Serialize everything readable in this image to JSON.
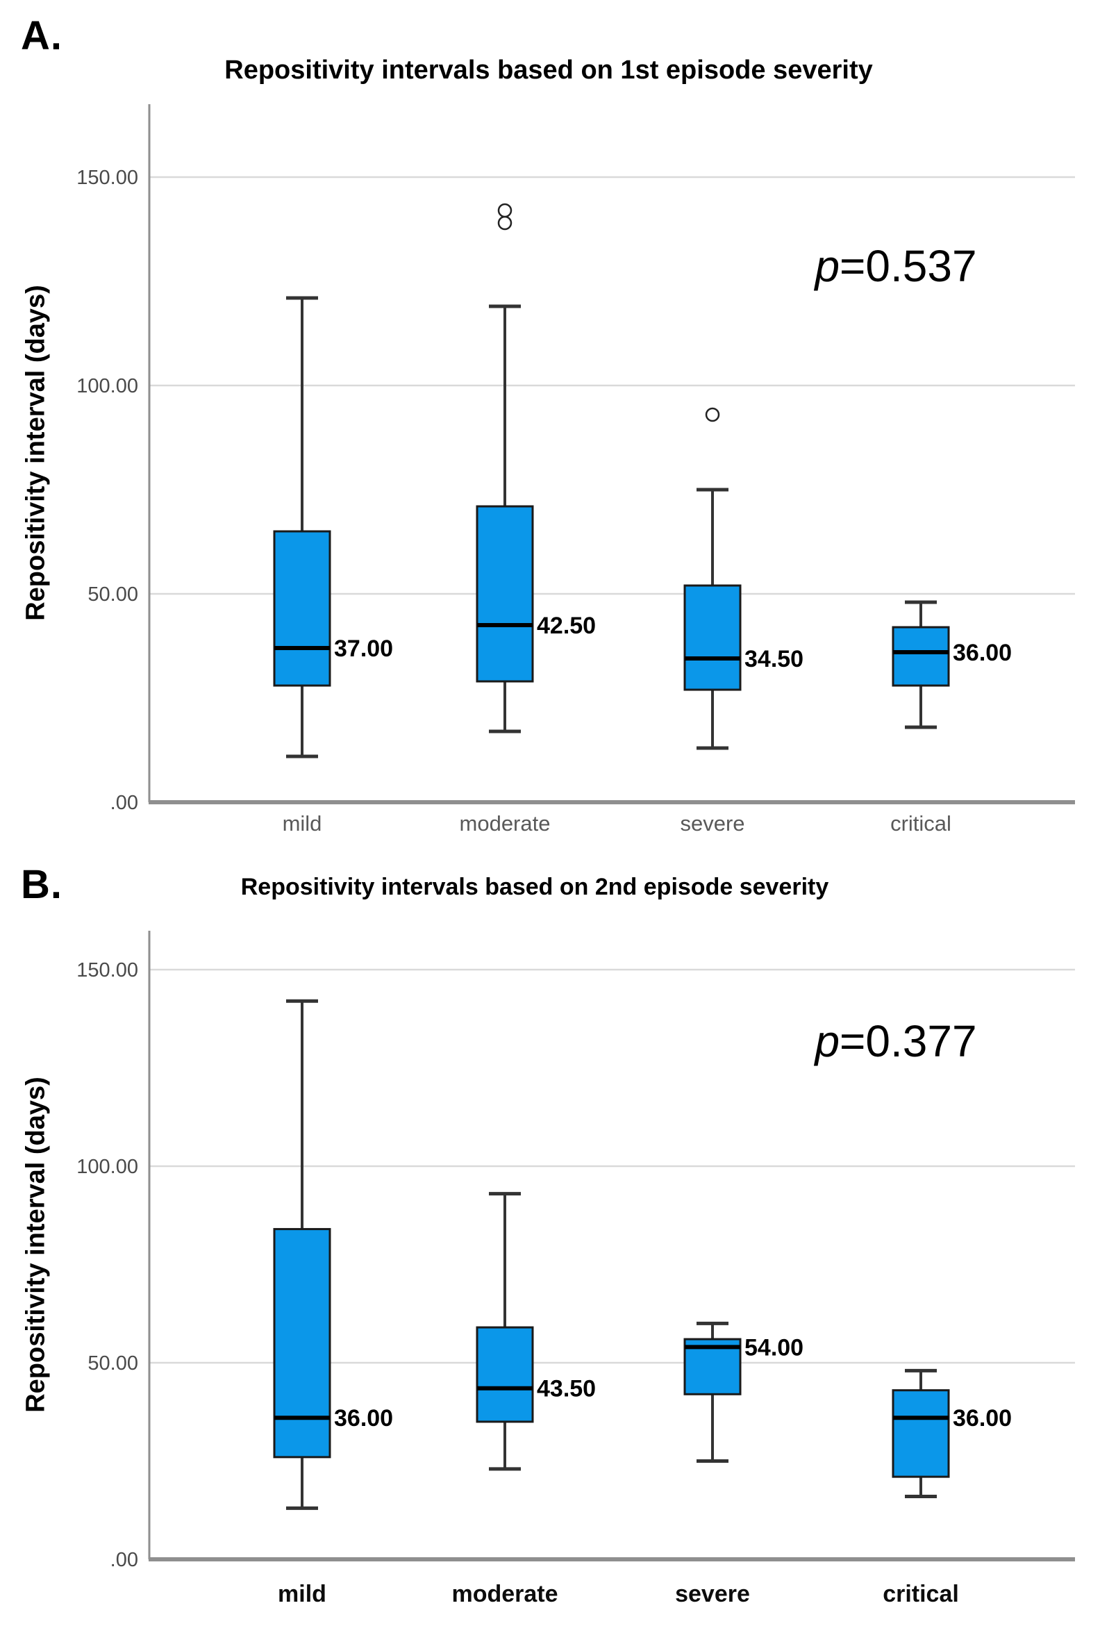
{
  "figure_colors": {
    "box_fill": "#0b97e9",
    "box_border": "#1a1a1a",
    "median_line": "#000000",
    "whisker": "#333333",
    "gridline": "#d9d9d9",
    "axis": "#8f8f8f",
    "outlier_stroke": "#222222"
  },
  "chart_data": [
    {
      "type": "boxplot",
      "panel_letter": "A.",
      "title": "Repositivity intervals based on 1st episode severity",
      "p_symbol": "p",
      "p_value_text": "=0.537",
      "ylabel": "Repositivity interval (days)",
      "ylim": [
        0,
        167
      ],
      "grid": "horizontal",
      "yticks": [
        {
          "value": 150,
          "label": "150.00"
        },
        {
          "value": 100,
          "label": "100.00"
        },
        {
          "value": 50,
          "label": "50.00"
        },
        {
          "value": 0,
          "label": ".00"
        }
      ],
      "categories": [
        "mild",
        "moderate",
        "severe",
        "critical"
      ],
      "boxes": [
        {
          "category": "mild",
          "whisker_low": 11,
          "q1": 28,
          "median": 37.0,
          "q3": 65,
          "whisker_high": 121,
          "median_label": "37.00",
          "outliers": []
        },
        {
          "category": "moderate",
          "whisker_low": 17,
          "q1": 29,
          "median": 42.5,
          "q3": 71,
          "whisker_high": 119,
          "median_label": "42.50",
          "outliers": [
            139,
            142
          ]
        },
        {
          "category": "severe",
          "whisker_low": 13,
          "q1": 27,
          "median": 34.5,
          "q3": 52,
          "whisker_high": 75,
          "median_label": "34.50",
          "outliers": [
            93
          ]
        },
        {
          "category": "critical",
          "whisker_low": 18,
          "q1": 28,
          "median": 36.0,
          "q3": 42,
          "whisker_high": 48,
          "median_label": "36.00",
          "outliers": []
        }
      ],
      "tick_text_color": "#4a4a4a",
      "category_text_color": "#595959"
    },
    {
      "type": "boxplot",
      "panel_letter": "B.",
      "title": "Repositivity intervals based on 2nd episode severity",
      "p_symbol": "p",
      "p_value_text": "=0.377",
      "ylabel": "Repositivity interval (days)",
      "ylim": [
        0,
        160
      ],
      "grid": "horizontal",
      "yticks": [
        {
          "value": 150,
          "label": "150.00"
        },
        {
          "value": 100,
          "label": "100.00"
        },
        {
          "value": 50,
          "label": "50.00"
        },
        {
          "value": 0,
          "label": ".00"
        }
      ],
      "categories": [
        "mild",
        "moderate",
        "severe",
        "critical"
      ],
      "boxes": [
        {
          "category": "mild",
          "whisker_low": 13,
          "q1": 26,
          "median": 36.0,
          "q3": 84,
          "whisker_high": 142,
          "median_label": "36.00",
          "outliers": []
        },
        {
          "category": "moderate",
          "whisker_low": 23,
          "q1": 35,
          "median": 43.5,
          "q3": 59,
          "whisker_high": 93,
          "median_label": "43.50",
          "outliers": []
        },
        {
          "category": "severe",
          "whisker_low": 25,
          "q1": 42,
          "median": 54.0,
          "q3": 56,
          "whisker_high": 60,
          "median_label": "54.00",
          "outliers": []
        },
        {
          "category": "critical",
          "whisker_low": 16,
          "q1": 21,
          "median": 36.0,
          "q3": 43,
          "whisker_high": 48,
          "median_label": "36.00",
          "outliers": []
        }
      ],
      "tick_text_color": "#4a4a4a",
      "category_text_color": "#0d0d0d"
    }
  ]
}
